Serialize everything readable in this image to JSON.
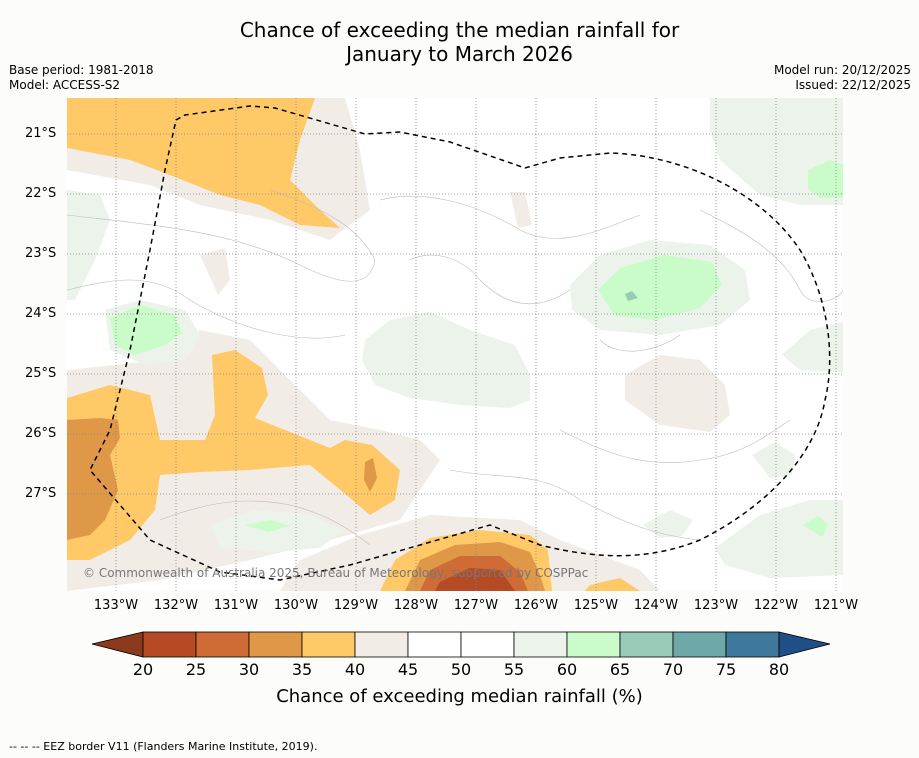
{
  "title_line1": "Chance of exceeding the median rainfall for",
  "title_line2": "January to March 2026",
  "base_period": "Base period: 1981-2018",
  "model": "Model: ACCESS-S2",
  "model_run": "Model run: 20/12/2025",
  "issued": "Issued: 22/12/2025",
  "credit": "© Commonwealth of Australia 2025, Bureau of Meteorology, supported by COSPPac",
  "eez_note": "-- -- -- EEZ border V11 (Flanders Marine Institute, 2019).",
  "lat_labels": [
    "21°S",
    "22°S",
    "23°S",
    "24°S",
    "25°S",
    "26°S",
    "27°S"
  ],
  "lon_labels": [
    "133°W",
    "132°W",
    "131°W",
    "130°W",
    "129°W",
    "128°W",
    "127°W",
    "126°W",
    "125°W",
    "124°W",
    "123°W",
    "122°W",
    "121°W"
  ],
  "colorbar": {
    "title": "Chance of exceeding median rainfall (%)",
    "ticks": [
      "20",
      "25",
      "30",
      "35",
      "40",
      "45",
      "50",
      "55",
      "60",
      "65",
      "70",
      "75",
      "80"
    ],
    "colors": [
      "#8c3a1e",
      "#b54a25",
      "#cf6b35",
      "#df9748",
      "#fec966",
      "#f2ece7",
      "#ffffff",
      "#ffffff",
      "#ebf3eb",
      "#cafcca",
      "#99ccb8",
      "#6ea8a8",
      "#3f789a",
      "#1f4f86"
    ]
  },
  "colors": {
    "background": "#fcfcfa",
    "ocean": "#ffffff",
    "eez_line": "#000000"
  }
}
